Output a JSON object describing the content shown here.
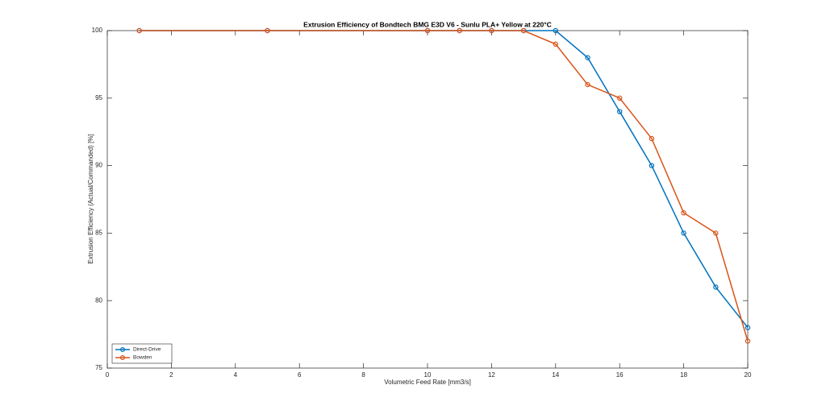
{
  "chart_data": {
    "type": "line",
    "title": "Extrusion Efficiency of Bondtech BMG E3D V6 - Sunlu PLA+ Yellow at 220°C",
    "x_label": "Volumetric Feed Rate [mm3/s]",
    "y_label": "Extrusion Efficiency (Actual/Commanded) [%]",
    "x": [
      1,
      5,
      10,
      11,
      12,
      13,
      14,
      15,
      16,
      17,
      18,
      19,
      20
    ],
    "series": [
      {
        "name": "Direct-Drive",
        "color": "#0072bd",
        "values": [
          100,
          100,
          100,
          100,
          100,
          100,
          100,
          98,
          94,
          90,
          85,
          81,
          78
        ]
      },
      {
        "name": "Bowden",
        "color": "#d95319",
        "values": [
          100,
          100,
          100,
          100,
          100,
          100,
          99,
          96,
          95,
          92,
          86.5,
          85,
          77
        ]
      }
    ],
    "xlim": [
      0,
      20
    ],
    "xticks": [
      0,
      2,
      4,
      6,
      8,
      10,
      12,
      14,
      16,
      18,
      20
    ],
    "ylim": [
      75,
      100
    ],
    "yticks": [
      75,
      80,
      85,
      90,
      95,
      100
    ],
    "grid": false,
    "legend": "lower-left"
  }
}
